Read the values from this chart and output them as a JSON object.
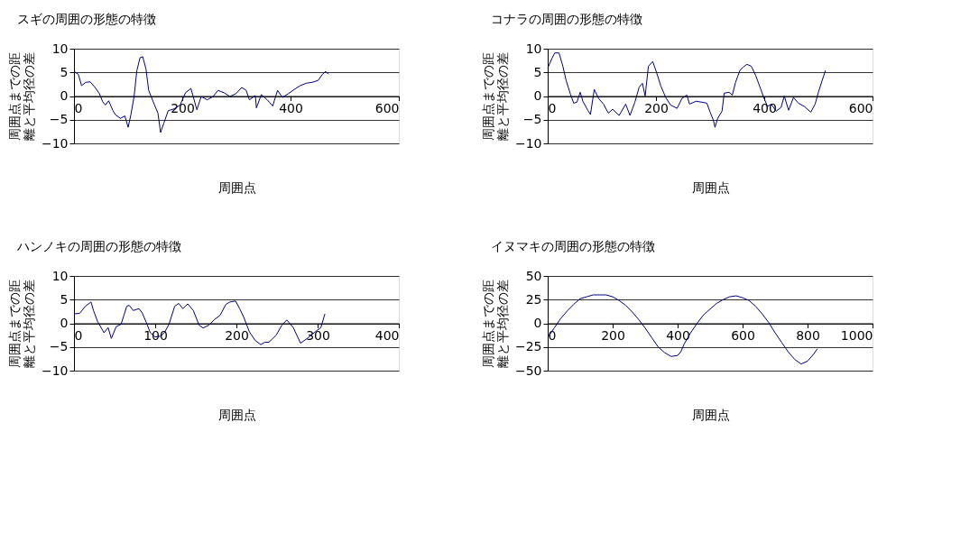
{
  "chart_data": [
    {
      "type": "line",
      "title": "スギの周囲の形態の特徴",
      "xlabel": "周囲点",
      "ylabel": "周囲点までの距離と平均径の差",
      "xlim": [
        0,
        600
      ],
      "xticks": [
        0,
        200,
        400,
        600
      ],
      "ylim": [
        -10,
        10
      ],
      "yticks": [
        -10,
        -5,
        0,
        5,
        10
      ],
      "grid": "y",
      "marker": "none",
      "line_style": "solid",
      "series": [
        {
          "color": "#000080",
          "x": [
            0,
            8,
            14,
            22,
            30,
            39,
            47,
            53,
            58,
            64,
            72,
            77,
            86,
            94,
            100,
            105,
            111,
            116,
            122,
            127,
            133,
            138,
            147,
            155,
            160,
            166,
            174,
            185,
            196,
            206,
            216,
            227,
            235,
            246,
            257,
            266,
            277,
            288,
            299,
            310,
            318,
            324,
            335,
            337,
            346,
            357,
            367,
            376,
            385,
            396,
            407,
            418,
            429,
            440,
            451,
            459,
            465,
            470
          ],
          "values": [
            5.2,
            4.6,
            2.2,
            2.9,
            3.0,
            1.8,
            0.5,
            -1.2,
            -1.9,
            -1.0,
            -3.1,
            -4.0,
            -4.7,
            -4.2,
            -6.6,
            -4.0,
            -0.1,
            5.3,
            8.1,
            8.3,
            5.7,
            1.2,
            -1.4,
            -3.6,
            -7.7,
            -5.7,
            -3.1,
            -2.7,
            -1.9,
            0.7,
            1.6,
            -2.9,
            -0.1,
            -0.8,
            -0.1,
            1.2,
            0.7,
            -0.1,
            0.5,
            1.8,
            1.2,
            -0.8,
            0.1,
            -2.5,
            0.3,
            -0.8,
            -2.1,
            1.2,
            -0.3,
            0.5,
            1.4,
            2.2,
            2.7,
            2.9,
            3.3,
            4.6,
            5.2,
            4.6
          ]
        }
      ]
    },
    {
      "type": "line",
      "title": "コナラの周囲の形態の特徴",
      "xlabel": "周囲点",
      "ylabel": "周囲点までの距離と平均径の差",
      "xlim": [
        0,
        600
      ],
      "xticks": [
        0,
        200,
        400,
        600
      ],
      "ylim": [
        -10,
        10
      ],
      "yticks": [
        -10,
        -5,
        0,
        5,
        10
      ],
      "grid": "y",
      "marker": "none",
      "line_style": "solid",
      "series": [
        {
          "color": "#000080",
          "x": [
            0,
            8,
            13,
            21,
            28,
            34,
            42,
            48,
            54,
            60,
            65,
            74,
            79,
            86,
            94,
            103,
            112,
            120,
            132,
            144,
            152,
            161,
            169,
            175,
            180,
            186,
            194,
            201,
            209,
            218,
            227,
            239,
            248,
            257,
            262,
            274,
            285,
            294,
            300,
            306,
            309,
            314,
            322,
            326,
            335,
            341,
            347,
            355,
            361,
            368,
            376,
            384,
            393,
            399,
            406,
            413,
            422,
            431,
            437,
            445,
            454,
            463,
            474,
            486,
            494,
            500,
            507,
            513
          ],
          "values": [
            5.9,
            8.0,
            9.1,
            9.1,
            6.3,
            3.3,
            0.4,
            -1.5,
            -1.3,
            0.8,
            -1.1,
            -3.0,
            -3.9,
            1.4,
            -0.5,
            -1.7,
            -3.6,
            -2.8,
            -4.1,
            -1.7,
            -4.1,
            -1.3,
            1.9,
            2.7,
            0,
            6.3,
            7.3,
            5.0,
            2.1,
            -0.3,
            -1.9,
            -2.6,
            -0.5,
            0.2,
            -1.7,
            -1.1,
            -1.3,
            -1.5,
            -3.4,
            -5.1,
            -6.6,
            -4.7,
            -3.2,
            0.6,
            0.8,
            0.2,
            2.9,
            5.4,
            6.1,
            6.7,
            6.3,
            4.4,
            1.6,
            -0.3,
            -2.2,
            -1.7,
            -3.2,
            -2.4,
            0,
            -3.0,
            -0.3,
            -1.5,
            -2.2,
            -3.4,
            -1.7,
            0.8,
            3.3,
            5.4
          ]
        }
      ]
    },
    {
      "type": "line",
      "title": "ハンノキの周囲の形態の特徴",
      "xlabel": "周囲点",
      "ylabel": "周囲点までの距離と平均径の差",
      "xlim": [
        0,
        400
      ],
      "xticks": [
        0,
        100,
        200,
        300,
        400
      ],
      "ylim": [
        -10,
        10
      ],
      "yticks": [
        -10,
        -5,
        0,
        5,
        10
      ],
      "grid": "y",
      "marker": "none",
      "line_style": "solid",
      "series": [
        {
          "color": "#000080",
          "x": [
            0,
            7,
            14,
            21,
            24,
            29,
            37,
            42,
            46,
            52,
            58,
            65,
            68,
            73,
            80,
            84,
            89,
            94,
            100,
            107,
            112,
            117,
            124,
            129,
            134,
            140,
            147,
            154,
            159,
            166,
            173,
            180,
            187,
            192,
            199,
            204,
            209,
            216,
            223,
            230,
            235,
            240,
            249,
            256,
            262,
            270,
            279,
            288,
            297,
            304,
            309
          ],
          "values": [
            2.0,
            2.1,
            3.6,
            4.5,
            2.7,
            0.4,
            -2.0,
            -0.9,
            -3.2,
            -0.7,
            -0.2,
            3.6,
            3.8,
            2.7,
            3.1,
            2.2,
            0.2,
            -2.0,
            -2.9,
            -2.7,
            -1.8,
            -0.2,
            3.6,
            4.2,
            3.1,
            4.1,
            2.7,
            -0.4,
            -1.0,
            -0.4,
            0.8,
            1.7,
            4.0,
            4.5,
            4.7,
            3.1,
            1.3,
            -1.8,
            -3.6,
            -4.5,
            -4.0,
            -4.0,
            -2.5,
            -0.4,
            0.7,
            -0.9,
            -4.2,
            -3.1,
            -1.8,
            -0.9,
            2.0
          ]
        }
      ]
    },
    {
      "type": "line",
      "title": "イヌマキの周囲の形態の特徴",
      "xlabel": "周囲点",
      "ylabel": "周囲点までの距離と平均径の差",
      "xlim": [
        0,
        1000
      ],
      "xticks": [
        0,
        200,
        400,
        600,
        800,
        1000
      ],
      "ylim": [
        -50,
        50
      ],
      "yticks": [
        -50,
        -25,
        0,
        25,
        50
      ],
      "grid": "y",
      "marker": "none",
      "line_style": "solid",
      "series": [
        {
          "color": "#000080",
          "x": [
            0,
            20,
            40,
            60,
            80,
            100,
            120,
            140,
            160,
            180,
            200,
            220,
            240,
            260,
            280,
            300,
            320,
            340,
            360,
            380,
            400,
            410,
            420,
            440,
            460,
            480,
            500,
            520,
            540,
            560,
            580,
            600,
            620,
            640,
            660,
            680,
            700,
            720,
            740,
            760,
            780,
            800,
            820,
            830
          ],
          "values": [
            -15,
            -5,
            5,
            13,
            20,
            26,
            28,
            30,
            30,
            30,
            28,
            24,
            19,
            12,
            4,
            -5,
            -15,
            -25,
            -31,
            -35,
            -34,
            -30,
            -22,
            -10,
            0,
            9,
            15,
            21,
            25,
            28,
            29,
            27,
            24,
            18,
            10,
            1,
            -10,
            -20,
            -30,
            -38,
            -43,
            -40,
            -32,
            -27
          ]
        }
      ]
    }
  ]
}
